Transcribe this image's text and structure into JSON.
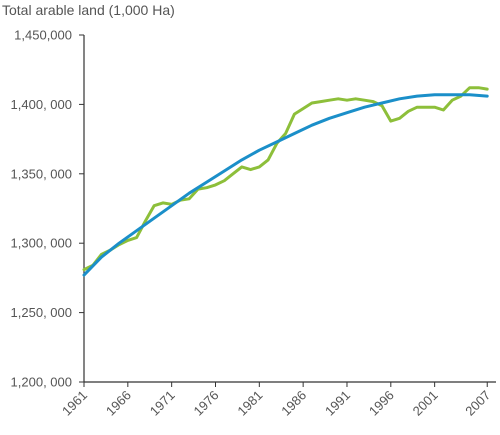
{
  "chart_data": {
    "type": "line",
    "title": "Total arable land (1,000 Ha)",
    "xlabel": "",
    "ylabel": "",
    "xlim": [
      1961,
      2008
    ],
    "ylim": [
      1200000,
      1450000
    ],
    "y_ticks": [
      1200000,
      1250000,
      1300000,
      1350000,
      1400000,
      1450000
    ],
    "y_tick_labels": [
      "1,200, 000",
      "1,250, 000",
      "1,300, 000",
      "1,350, 000",
      "1,400, 000",
      "1,450,000"
    ],
    "x_ticks": [
      1961,
      1966,
      1971,
      1976,
      1981,
      1986,
      1991,
      1996,
      2001,
      2007
    ],
    "x_tick_labels": [
      "1961",
      "1966",
      "1971",
      "1976",
      "1981",
      "1986",
      "1991",
      "1996",
      "2001",
      "2007"
    ],
    "grid": false,
    "legend": "none",
    "series": [
      {
        "color": "#8dbf3a",
        "x": [
          1961,
          1962,
          1963,
          1964,
          1965,
          1966,
          1967,
          1968,
          1969,
          1970,
          1971,
          1972,
          1973,
          1974,
          1975,
          1976,
          1977,
          1978,
          1979,
          1980,
          1981,
          1982,
          1983,
          1984,
          1985,
          1986,
          1987,
          1988,
          1989,
          1990,
          1991,
          1992,
          1993,
          1994,
          1995,
          1996,
          1997,
          1998,
          1999,
          2000,
          2001,
          2002,
          2003,
          2004,
          2005,
          2006,
          2007
        ],
        "values": [
          1281000,
          1284000,
          1292000,
          1295000,
          1299000,
          1302000,
          1304000,
          1316000,
          1327000,
          1329000,
          1328000,
          1331000,
          1332000,
          1339000,
          1340000,
          1342000,
          1345000,
          1350000,
          1355000,
          1353000,
          1355000,
          1360000,
          1372000,
          1379000,
          1393000,
          1397000,
          1401000,
          1402000,
          1403000,
          1404000,
          1403000,
          1404000,
          1403000,
          1402000,
          1399000,
          1388000,
          1390000,
          1395000,
          1398000,
          1398000,
          1398000,
          1396000,
          1403000,
          1406000,
          1412000,
          1412000,
          1411000
        ]
      },
      {
        "color": "#1b8fc9",
        "x": [
          1961,
          1963,
          1965,
          1967,
          1969,
          1971,
          1973,
          1975,
          1977,
          1979,
          1981,
          1983,
          1985,
          1987,
          1989,
          1991,
          1993,
          1995,
          1997,
          1999,
          2001,
          2003,
          2005,
          2007
        ],
        "values": [
          1277000,
          1290000,
          1300000,
          1309000,
          1318000,
          1327000,
          1336000,
          1344000,
          1352000,
          1360000,
          1367000,
          1373000,
          1379000,
          1385000,
          1390000,
          1394000,
          1398000,
          1401000,
          1404000,
          1406000,
          1407000,
          1407000,
          1407000,
          1406000
        ]
      }
    ]
  },
  "colors": {
    "axis": "#333333",
    "text": "#555555",
    "background": "#ffffff"
  }
}
